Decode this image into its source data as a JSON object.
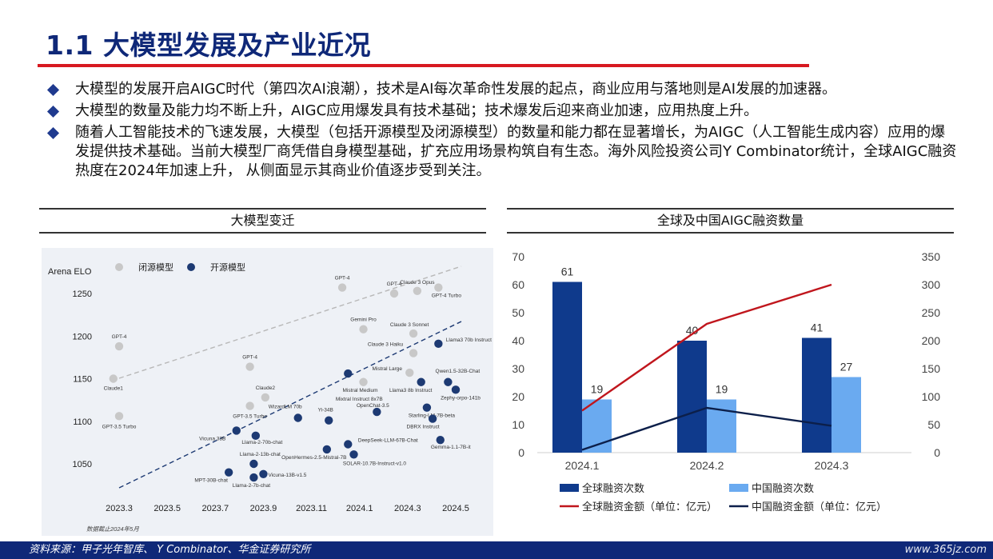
{
  "title": "1.1 大模型发展及产业近况",
  "bullets": [
    "大模型的发展开启AIGC时代（第四次AI浪潮），技术是AI每次革命性发展的起点，商业应用与落地则是AI发展的加速器。",
    "大模型的数量及能力均不断上升，AIGC应用爆发具有技术基础；技术爆发后迎来商业加速，应用热度上升。",
    "随着人工智能技术的飞速发展，大模型（包括开源模型及闭源模型）的数量和能力都在显著增长，为AIGC（人工智能生成内容）应用的爆发提供技术基础。当前大模型厂商凭借自身模型基础，扩充应用场景构筑自有生态。海外风险投资公司Y Combinator统计，全球AIGC融资热度在2024年加速上升， 从侧面显示其商业价值逐步受到关注。"
  ],
  "colors": {
    "title": "#0f2878",
    "accent_red": "#d71920",
    "closed": "#c8c8c8",
    "open": "#1d3a73",
    "bar_global": "#0f3a8c",
    "bar_china": "#6aaaf0",
    "line_global": "#c0161d",
    "line_china": "#0c1f4a"
  },
  "left_panel": {
    "title": "大模型变迁",
    "chart_data": {
      "type": "scatter",
      "ylabel": "Arena ELO",
      "legend": [
        "闭源模型",
        "开源模型"
      ],
      "x_ticks": [
        "2023.3",
        "2023.5",
        "2023.7",
        "2023.9",
        "2023.11",
        "2024.1",
        "2024.3",
        "2024.5"
      ],
      "y_ticks": [
        1050,
        1100,
        1150,
        1200,
        1250
      ],
      "note": "数据截止2024年5月",
      "closed_points": [
        {
          "label": "GPT-4",
          "x": 2023.25,
          "y": 1188
        },
        {
          "label": "Claude1",
          "x": 2023.22,
          "y": 1150
        },
        {
          "label": "GPT-3.5 Turbo",
          "x": 2023.25,
          "y": 1106
        },
        {
          "label": "GPT-4",
          "x": 2023.93,
          "y": 1164
        },
        {
          "label": "Claude2",
          "x": 2024.01,
          "y": 1128
        },
        {
          "label": "GPT-3.5 Turbo",
          "x": 2023.93,
          "y": 1118
        },
        {
          "label": "GPT-4",
          "x": 2024.41,
          "y": 1257
        },
        {
          "label": "Gemini Pro",
          "x": 2024.52,
          "y": 1208
        },
        {
          "label": "Mistral Medium",
          "x": 2024.52,
          "y": 1146
        },
        {
          "label": "GPT-4",
          "x": 2024.68,
          "y": 1250
        },
        {
          "label": "Claude 3 Opus",
          "x": 2024.8,
          "y": 1253
        },
        {
          "label": "GPT-4 Turbo",
          "x": 2024.91,
          "y": 1257
        },
        {
          "label": "Claude 3 Sonnet",
          "x": 2024.78,
          "y": 1203
        },
        {
          "label": "Claude 3 Haiku",
          "x": 2024.78,
          "y": 1180
        },
        {
          "label": "Mistral Large",
          "x": 2024.76,
          "y": 1157
        }
      ],
      "open_points": [
        {
          "label": "Vicuna 33B",
          "x": 2023.86,
          "y": 1089
        },
        {
          "label": "MPT-30B-chat",
          "x": 2023.82,
          "y": 1040
        },
        {
          "label": "Llama-2-70b-chat",
          "x": 2023.96,
          "y": 1083
        },
        {
          "label": "Llama-2-13b-chat",
          "x": 2023.95,
          "y": 1050
        },
        {
          "label": "Llama-2-7b-chat",
          "x": 2023.95,
          "y": 1034
        },
        {
          "label": "Vicuna-13B-v1.5",
          "x": 2024.0,
          "y": 1038
        },
        {
          "label": "WizardLM 70b",
          "x": 2024.18,
          "y": 1104
        },
        {
          "label": "Yi-34B",
          "x": 2024.34,
          "y": 1101
        },
        {
          "label": "OpenHermes-2.5-Mistral-7B",
          "x": 2024.33,
          "y": 1067
        },
        {
          "label": "Mixtral Instruct 8x7B",
          "x": 2024.44,
          "y": 1156
        },
        {
          "label": "DeepSeek-LLM-67B-Chat",
          "x": 2024.44,
          "y": 1073
        },
        {
          "label": "SOLAR-10.7B-Instruct-v1.0",
          "x": 2024.47,
          "y": 1061
        },
        {
          "label": "OpenChat-3.5",
          "x": 2024.59,
          "y": 1111
        },
        {
          "label": "Llama3 8b Instruct",
          "x": 2024.82,
          "y": 1146
        },
        {
          "label": "Starling-LM-7B-beta",
          "x": 2024.85,
          "y": 1116
        },
        {
          "label": "DBRX Instruct",
          "x": 2024.88,
          "y": 1103
        },
        {
          "label": "Gemma-1.1-7B-it",
          "x": 2024.92,
          "y": 1078
        },
        {
          "label": "Llama3 70b Instruct",
          "x": 2024.91,
          "y": 1191
        },
        {
          "label": "Qwen1.5-32B-Chat",
          "x": 2024.96,
          "y": 1146
        },
        {
          "label": "Zephy-orpo-141b",
          "x": 2025.0,
          "y": 1137
        }
      ]
    }
  },
  "right_panel": {
    "title": "全球及中国AIGC融资数量",
    "chart_data": {
      "type": "bar",
      "categories": [
        "2024.1",
        "2024.2",
        "2024.3"
      ],
      "left_axis": [
        0,
        10,
        20,
        30,
        40,
        50,
        60,
        70
      ],
      "right_axis": [
        0,
        50,
        100,
        150,
        200,
        250,
        300,
        350
      ],
      "ylim_left": [
        0,
        70
      ],
      "ylim_right": [
        0,
        350
      ],
      "series": [
        {
          "name": "全球融资次数",
          "type": "bar",
          "values": [
            61,
            40,
            41
          ]
        },
        {
          "name": "中国融资次数",
          "type": "bar",
          "values": [
            19,
            19,
            27
          ]
        },
        {
          "name": "全球融资金额（单位：亿元）",
          "type": "line",
          "values": [
            75,
            230,
            300
          ]
        },
        {
          "name": "中国融资金额（单位：亿元）",
          "type": "line",
          "values": [
            5,
            80,
            48
          ]
        }
      ]
    }
  },
  "footer": {
    "source": "资料来源：甲子光年智库、 Y Combinator、华金证券研究所",
    "watermark": "www.365jz.com"
  }
}
